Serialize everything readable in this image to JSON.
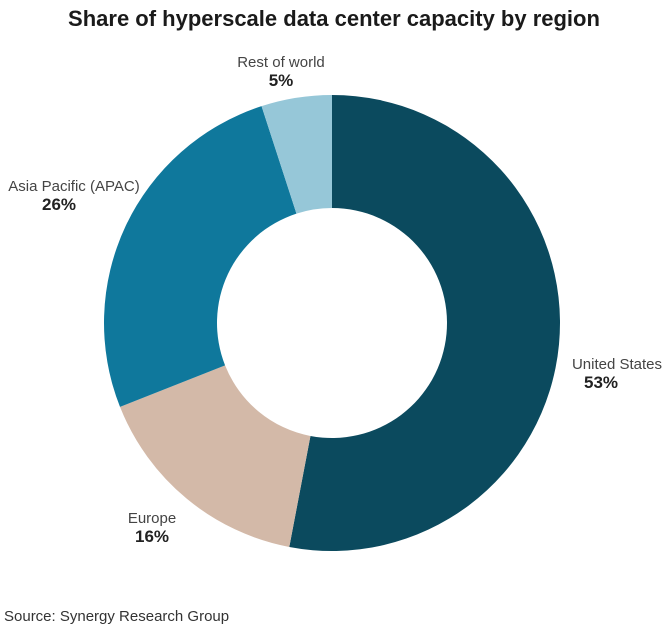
{
  "chart_data": {
    "type": "pie",
    "donut": true,
    "title": "Share of hyperscale data center capacity by region",
    "source": "Source: Synergy Research Group",
    "slices": [
      {
        "label": "United States",
        "value": 53,
        "value_label": "53%",
        "color": "#0b4a5e"
      },
      {
        "label": "Europe",
        "value": 16,
        "value_label": "16%",
        "color": "#d3b9a8"
      },
      {
        "label": "Asia Pacific (APAC)",
        "value": 26,
        "value_label": "26%",
        "color": "#0f789c"
      },
      {
        "label": "Rest of world",
        "value": 5,
        "value_label": "5%",
        "color": "#96c7d8"
      }
    ]
  }
}
